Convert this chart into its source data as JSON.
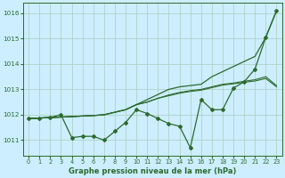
{
  "background_color": "#cceeff",
  "plot_bg_color": "#cceeff",
  "grid_color": "#aaccbb",
  "line_color": "#2d6a2d",
  "xlabel": "Graphe pression niveau de la mer (hPa)",
  "ylim": [
    1010.4,
    1016.4
  ],
  "xlim": [
    -0.5,
    23.5
  ],
  "yticks": [
    1011,
    1012,
    1013,
    1014,
    1015,
    1016
  ],
  "xticks": [
    0,
    1,
    2,
    3,
    4,
    5,
    6,
    7,
    8,
    9,
    10,
    11,
    12,
    13,
    14,
    15,
    16,
    17,
    18,
    19,
    20,
    21,
    22,
    23
  ],
  "upper_line": [
    1011.85,
    1011.87,
    1011.89,
    1011.91,
    1011.93,
    1011.95,
    1011.97,
    1012.0,
    1012.1,
    1012.2,
    1012.4,
    1012.6,
    1012.8,
    1013.0,
    1013.1,
    1013.15,
    1013.2,
    1013.5,
    1013.7,
    1013.9,
    1014.1,
    1014.3,
    1015.05,
    1016.1
  ],
  "mid_line1": [
    1011.85,
    1011.87,
    1011.89,
    1011.91,
    1011.93,
    1011.95,
    1011.97,
    1012.0,
    1012.1,
    1012.2,
    1012.4,
    1012.5,
    1012.65,
    1012.78,
    1012.88,
    1012.95,
    1013.0,
    1013.1,
    1013.2,
    1013.25,
    1013.32,
    1013.38,
    1013.5,
    1013.15
  ],
  "mid_line2": [
    1011.85,
    1011.87,
    1011.89,
    1011.91,
    1011.93,
    1011.95,
    1011.97,
    1012.0,
    1012.1,
    1012.2,
    1012.4,
    1012.5,
    1012.65,
    1012.75,
    1012.85,
    1012.92,
    1012.97,
    1013.07,
    1013.17,
    1013.22,
    1013.28,
    1013.33,
    1013.43,
    1013.1
  ],
  "meas_line": [
    1011.85,
    1011.87,
    1011.9,
    1012.0,
    1011.1,
    1011.15,
    1011.15,
    1011.0,
    1011.35,
    1011.7,
    1012.2,
    1012.05,
    1011.85,
    1011.65,
    1011.55,
    1010.7,
    1012.6,
    1012.2,
    1012.2,
    1013.05,
    1013.3,
    1013.8,
    1015.05,
    1016.1
  ]
}
